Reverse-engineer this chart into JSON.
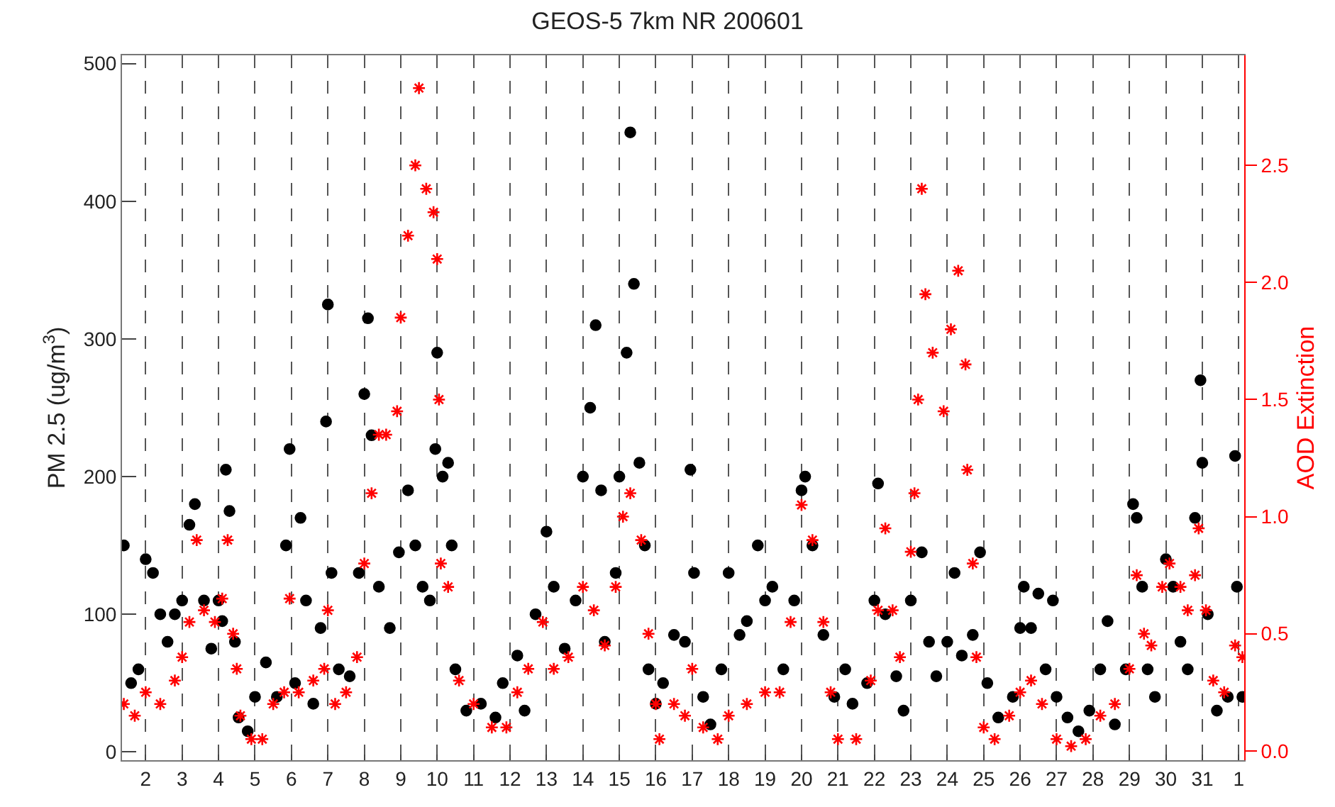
{
  "chart_data": {
    "type": "scatter",
    "title": "GEOS-5 7km NR 200601",
    "ylabel": "PM 2.5 (ug/m$^{3}$)",
    "y2label": "AOD Extinction",
    "xlim": [
      "2006-01-01T08:24",
      "2006-02-01T03:36"
    ],
    "xticks": [
      {
        "value": "2006-01-02",
        "label": "2"
      },
      {
        "value": "2006-01-03",
        "label": "3"
      },
      {
        "value": "2006-01-04",
        "label": "4"
      },
      {
        "value": "2006-01-05",
        "label": "5"
      },
      {
        "value": "2006-01-06",
        "label": "6"
      },
      {
        "value": "2006-01-07",
        "label": "7"
      },
      {
        "value": "2006-01-08",
        "label": "8"
      },
      {
        "value": "2006-01-09",
        "label": "9"
      },
      {
        "value": "2006-01-10",
        "label": "10"
      },
      {
        "value": "2006-01-11",
        "label": "11"
      },
      {
        "value": "2006-01-12",
        "label": "12"
      },
      {
        "value": "2006-01-13",
        "label": "13"
      },
      {
        "value": "2006-01-14",
        "label": "14"
      },
      {
        "value": "2006-01-15",
        "label": "15"
      },
      {
        "value": "2006-01-16",
        "label": "16"
      },
      {
        "value": "2006-01-17",
        "label": "17"
      },
      {
        "value": "2006-01-18",
        "label": "18"
      },
      {
        "value": "2006-01-19",
        "label": "19"
      },
      {
        "value": "2006-01-20",
        "label": "20"
      },
      {
        "value": "2006-01-21",
        "label": "21"
      },
      {
        "value": "2006-01-22",
        "label": "22"
      },
      {
        "value": "2006-01-23",
        "label": "23"
      },
      {
        "value": "2006-01-24",
        "label": "24"
      },
      {
        "value": "2006-01-25",
        "label": "25"
      },
      {
        "value": "2006-01-26",
        "label": "26"
      },
      {
        "value": "2006-01-27",
        "label": "27"
      },
      {
        "value": "2006-01-28",
        "label": "28"
      },
      {
        "value": "2006-01-29",
        "label": "29"
      },
      {
        "value": "2006-01-30",
        "label": "30"
      },
      {
        "value": "2006-01-31",
        "label": "31"
      },
      {
        "value": "2006-02-01",
        "label": "1"
      }
    ],
    "ylim": [
      -6,
      506
    ],
    "yticks": [
      0,
      100,
      200,
      300,
      400,
      500
    ],
    "y2lim": [
      -0.04,
      2.97
    ],
    "y2ticks": [
      {
        "value": 0,
        "label": "0.0"
      },
      {
        "value": 0.5,
        "label": "0.5"
      },
      {
        "value": 1,
        "label": "1.0"
      },
      {
        "value": 1.5,
        "label": "1.5"
      },
      {
        "value": 2,
        "label": "2.0"
      },
      {
        "value": 2.5,
        "label": "2.5"
      }
    ],
    "grid": "x",
    "series": [
      {
        "color": "#000000",
        "marker": "circle",
        "axis": "y",
        "x": [
          "2006-01-01T09:36",
          "2006-01-01T14:24",
          "2006-01-01T19:12",
          "2006-01-02T00:00",
          "2006-01-02T04:48",
          "2006-01-02T09:36",
          "2006-01-02T14:24",
          "2006-01-02T19:12",
          "2006-01-03T00:00",
          "2006-01-03T04:48",
          "2006-01-03T08:24",
          "2006-01-03T14:24",
          "2006-01-03T19:12",
          "2006-01-04T00:00",
          "2006-01-04T02:24",
          "2006-01-04T04:48",
          "2006-01-04T07:12",
          "2006-01-04T10:48",
          "2006-01-04T13:12",
          "2006-01-04T19:12",
          "2006-01-05T00:00",
          "2006-01-05T07:12",
          "2006-01-05T14:24",
          "2006-01-05T20:24",
          "2006-01-05T22:48",
          "2006-01-06T02:24",
          "2006-01-06T06:00",
          "2006-01-06T09:36",
          "2006-01-06T14:24",
          "2006-01-06T19:12",
          "2006-01-06T22:48",
          "2006-01-07T00:00",
          "2006-01-07T02:24",
          "2006-01-07T07:12",
          "2006-01-07T14:24",
          "2006-01-07T20:24",
          "2006-01-08T00:00",
          "2006-01-08T02:24",
          "2006-01-08T04:48",
          "2006-01-08T09:36",
          "2006-01-08T16:48",
          "2006-01-08T22:48",
          "2006-01-09T04:48",
          "2006-01-09T09:36",
          "2006-01-09T14:24",
          "2006-01-09T19:12",
          "2006-01-09T22:48",
          "2006-01-10T00:00",
          "2006-01-10T03:36",
          "2006-01-10T07:12",
          "2006-01-10T09:36",
          "2006-01-10T12:00",
          "2006-01-10T19:12",
          "2006-01-11T04:48",
          "2006-01-11T14:24",
          "2006-01-11T19:12",
          "2006-01-12T04:48",
          "2006-01-12T09:36",
          "2006-01-12T16:48",
          "2006-01-13T00:00",
          "2006-01-13T04:48",
          "2006-01-13T12:00",
          "2006-01-13T19:12",
          "2006-01-14T00:00",
          "2006-01-14T04:48",
          "2006-01-14T08:24",
          "2006-01-14T12:00",
          "2006-01-14T14:24",
          "2006-01-14T21:36",
          "2006-01-15T00:00",
          "2006-01-15T04:48",
          "2006-01-15T07:12",
          "2006-01-15T09:36",
          "2006-01-15T13:12",
          "2006-01-15T16:48",
          "2006-01-15T19:12",
          "2006-01-16T00:00",
          "2006-01-16T04:48",
          "2006-01-16T12:00",
          "2006-01-16T19:12",
          "2006-01-16T22:48",
          "2006-01-17T01:12",
          "2006-01-17T07:12",
          "2006-01-17T12:00",
          "2006-01-17T19:12",
          "2006-01-18T00:00",
          "2006-01-18T07:12",
          "2006-01-18T12:00",
          "2006-01-18T19:12",
          "2006-01-19T00:00",
          "2006-01-19T04:48",
          "2006-01-19T12:00",
          "2006-01-19T19:12",
          "2006-01-20T00:00",
          "2006-01-20T02:24",
          "2006-01-20T07:12",
          "2006-01-20T14:24",
          "2006-01-20T21:36",
          "2006-01-21T04:48",
          "2006-01-21T09:36",
          "2006-01-21T19:12",
          "2006-01-22T00:00",
          "2006-01-22T02:24",
          "2006-01-22T07:12",
          "2006-01-22T14:24",
          "2006-01-22T19:12",
          "2006-01-23T00:00",
          "2006-01-23T07:12",
          "2006-01-23T12:00",
          "2006-01-23T16:48",
          "2006-01-24T00:00",
          "2006-01-24T04:48",
          "2006-01-24T09:36",
          "2006-01-24T16:48",
          "2006-01-24T21:36",
          "2006-01-25T02:24",
          "2006-01-25T09:36",
          "2006-01-25T19:12",
          "2006-01-26T00:00",
          "2006-01-26T02:24",
          "2006-01-26T07:12",
          "2006-01-26T12:00",
          "2006-01-26T16:48",
          "2006-01-26T21:36",
          "2006-01-27T00:00",
          "2006-01-27T07:12",
          "2006-01-27T14:24",
          "2006-01-27T21:36",
          "2006-01-28T04:48",
          "2006-01-28T09:36",
          "2006-01-28T14:24",
          "2006-01-28T21:36",
          "2006-01-29T02:24",
          "2006-01-29T04:48",
          "2006-01-29T08:24",
          "2006-01-29T12:00",
          "2006-01-29T16:48",
          "2006-01-30T00:00",
          "2006-01-30T04:48",
          "2006-01-30T09:36",
          "2006-01-30T14:24",
          "2006-01-30T19:12",
          "2006-01-30T22:48",
          "2006-01-31T00:00",
          "2006-01-31T03:36",
          "2006-01-31T09:36",
          "2006-01-31T16:48",
          "2006-01-31T21:36",
          "2006-01-31T22:48",
          "2006-02-01T02:24"
        ],
        "values": [
          150,
          50,
          60,
          140,
          130,
          100,
          80,
          100,
          110,
          165,
          180,
          110,
          75,
          110,
          95,
          205,
          175,
          80,
          25,
          15,
          40,
          65,
          40,
          150,
          220,
          50,
          170,
          110,
          35,
          90,
          240,
          325,
          130,
          60,
          55,
          130,
          260,
          315,
          230,
          120,
          90,
          145,
          190,
          150,
          120,
          110,
          220,
          290,
          200,
          210,
          150,
          60,
          30,
          35,
          25,
          50,
          70,
          30,
          100,
          160,
          120,
          75,
          110,
          200,
          250,
          310,
          190,
          80,
          130,
          200,
          290,
          450,
          340,
          210,
          150,
          60,
          35,
          50,
          85,
          80,
          205,
          130,
          40,
          20,
          60,
          130,
          85,
          95,
          150,
          110,
          120,
          60,
          110,
          190,
          200,
          150,
          85,
          40,
          60,
          35,
          50,
          110,
          195,
          100,
          55,
          30,
          110,
          145,
          80,
          55,
          80,
          130,
          70,
          85,
          145,
          50,
          25,
          40,
          90,
          120,
          90,
          115,
          60,
          110,
          40,
          25,
          15,
          30,
          60,
          95,
          20,
          60,
          180,
          170,
          120,
          60,
          40,
          140,
          120,
          80,
          60,
          170,
          270,
          210,
          100,
          30,
          40,
          215,
          120,
          40
        ]
      },
      {
        "color": "#ff0000",
        "marker": "cross",
        "axis": "y2",
        "x": [
          "2006-01-01T09:36",
          "2006-01-01T16:48",
          "2006-01-02T00:00",
          "2006-01-02T09:36",
          "2006-01-02T19:12",
          "2006-01-03T00:00",
          "2006-01-03T04:48",
          "2006-01-03T09:36",
          "2006-01-03T14:24",
          "2006-01-03T21:36",
          "2006-01-04T02:24",
          "2006-01-04T06:00",
          "2006-01-04T09:36",
          "2006-01-04T12:00",
          "2006-01-04T14:24",
          "2006-01-04T21:36",
          "2006-01-05T04:48",
          "2006-01-05T12:00",
          "2006-01-05T19:12",
          "2006-01-05T22:48",
          "2006-01-06T04:48",
          "2006-01-06T14:24",
          "2006-01-06T21:36",
          "2006-01-07T00:00",
          "2006-01-07T04:48",
          "2006-01-07T12:00",
          "2006-01-07T19:12",
          "2006-01-08T00:00",
          "2006-01-08T04:48",
          "2006-01-08T09:36",
          "2006-01-08T14:24",
          "2006-01-08T21:36",
          "2006-01-09T00:00",
          "2006-01-09T04:48",
          "2006-01-09T09:36",
          "2006-01-09T12:00",
          "2006-01-09T16:48",
          "2006-01-09T21:36",
          "2006-01-10T00:00",
          "2006-01-10T01:12",
          "2006-01-10T02:24",
          "2006-01-10T07:12",
          "2006-01-10T14:24",
          "2006-01-11T00:00",
          "2006-01-11T12:00",
          "2006-01-11T21:36",
          "2006-01-12T04:48",
          "2006-01-12T12:00",
          "2006-01-12T21:36",
          "2006-01-13T04:48",
          "2006-01-13T14:24",
          "2006-01-14T00:00",
          "2006-01-14T07:12",
          "2006-01-14T14:24",
          "2006-01-14T21:36",
          "2006-01-15T02:24",
          "2006-01-15T07:12",
          "2006-01-15T14:24",
          "2006-01-15T19:12",
          "2006-01-16T00:00",
          "2006-01-16T02:24",
          "2006-01-16T12:00",
          "2006-01-16T19:12",
          "2006-01-17T00:00",
          "2006-01-17T07:12",
          "2006-01-17T16:48",
          "2006-01-18T00:00",
          "2006-01-18T12:00",
          "2006-01-19T00:00",
          "2006-01-19T09:36",
          "2006-01-19T16:48",
          "2006-01-20T00:00",
          "2006-01-20T07:12",
          "2006-01-20T14:24",
          "2006-01-20T19:12",
          "2006-01-21T00:00",
          "2006-01-21T12:00",
          "2006-01-21T21:36",
          "2006-01-22T02:24",
          "2006-01-22T07:12",
          "2006-01-22T12:00",
          "2006-01-22T16:48",
          "2006-01-23T00:00",
          "2006-01-23T02:24",
          "2006-01-23T04:48",
          "2006-01-23T07:12",
          "2006-01-23T09:36",
          "2006-01-23T14:24",
          "2006-01-23T21:36",
          "2006-01-24T02:24",
          "2006-01-24T07:12",
          "2006-01-24T12:00",
          "2006-01-24T13:12",
          "2006-01-24T16:48",
          "2006-01-24T19:12",
          "2006-01-25T00:00",
          "2006-01-25T07:12",
          "2006-01-25T16:48",
          "2006-01-26T00:00",
          "2006-01-26T07:12",
          "2006-01-26T14:24",
          "2006-01-27T00:00",
          "2006-01-27T09:36",
          "2006-01-27T19:12",
          "2006-01-28T04:48",
          "2006-01-28T14:24",
          "2006-01-29T00:00",
          "2006-01-29T04:48",
          "2006-01-29T09:36",
          "2006-01-29T14:24",
          "2006-01-29T21:36",
          "2006-01-30T02:24",
          "2006-01-30T09:36",
          "2006-01-30T14:24",
          "2006-01-30T19:12",
          "2006-01-30T21:36",
          "2006-01-31T02:24",
          "2006-01-31T07:12",
          "2006-01-31T14:24",
          "2006-01-31T21:36",
          "2006-02-01T02:24"
        ],
        "values": [
          0.2,
          0.15,
          0.25,
          0.2,
          0.3,
          0.4,
          0.55,
          0.9,
          0.6,
          0.55,
          0.65,
          0.9,
          0.5,
          0.35,
          0.15,
          0.05,
          0.05,
          0.2,
          0.25,
          0.65,
          0.25,
          0.3,
          0.35,
          0.6,
          0.2,
          0.25,
          0.4,
          0.8,
          1.1,
          1.35,
          1.35,
          1.45,
          1.85,
          2.2,
          2.5,
          2.83,
          2.4,
          2.3,
          2.1,
          1.5,
          0.8,
          0.7,
          0.3,
          0.2,
          0.1,
          0.1,
          0.25,
          0.35,
          0.55,
          0.35,
          0.4,
          0.7,
          0.6,
          0.45,
          0.7,
          1.0,
          1.1,
          0.9,
          0.5,
          0.2,
          0.05,
          0.2,
          0.15,
          0.35,
          0.1,
          0.05,
          0.15,
          0.2,
          0.25,
          0.25,
          0.55,
          1.05,
          0.9,
          0.55,
          0.25,
          0.05,
          0.05,
          0.3,
          0.6,
          0.95,
          0.6,
          0.4,
          0.85,
          1.1,
          1.5,
          2.4,
          1.95,
          1.7,
          1.45,
          1.8,
          2.05,
          1.65,
          1.2,
          0.8,
          0.4,
          0.1,
          0.05,
          0.15,
          0.25,
          0.3,
          0.2,
          0.05,
          0.02,
          0.05,
          0.15,
          0.2,
          0.35,
          0.75,
          0.5,
          0.45,
          0.7,
          0.8,
          0.7,
          0.6,
          0.75,
          0.95,
          0.6,
          0.3,
          0.25,
          0.45,
          0.4
        ]
      }
    ]
  }
}
